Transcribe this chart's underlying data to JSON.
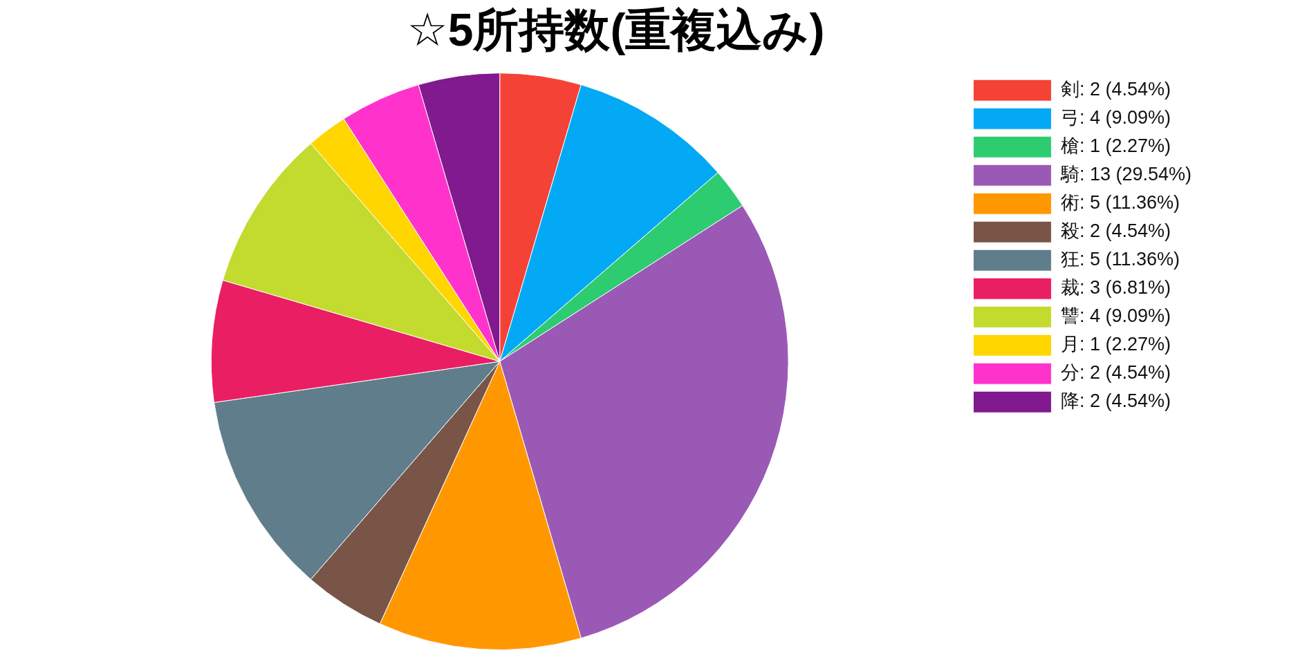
{
  "chart_data": {
    "type": "pie",
    "title": "☆5所持数(重複込み)",
    "categories": [
      "剣: 2 (4.54%)",
      "弓: 4 (9.09%)",
      "槍: 1 (2.27%)",
      "騎: 13 (29.54%)",
      "術: 5 (11.36%)",
      "殺: 2 (4.54%)",
      "狂: 5 (11.36%)",
      "裁: 3 (6.81%)",
      "讐: 4 (9.09%)",
      "月: 1 (2.27%)",
      "分: 2 (4.54%)",
      "降: 2 (4.54%)"
    ],
    "values": [
      2,
      4,
      1,
      13,
      5,
      2,
      5,
      3,
      4,
      1,
      2,
      2
    ],
    "colors": [
      "#f44336",
      "#03a9f4",
      "#2ecc71",
      "#9b59b6",
      "#ff9800",
      "#795548",
      "#607d8b",
      "#e91e63",
      "#c3da2e",
      "#ffd600",
      "#ff33cc",
      "#801a8e"
    ],
    "legend": "top right"
  }
}
